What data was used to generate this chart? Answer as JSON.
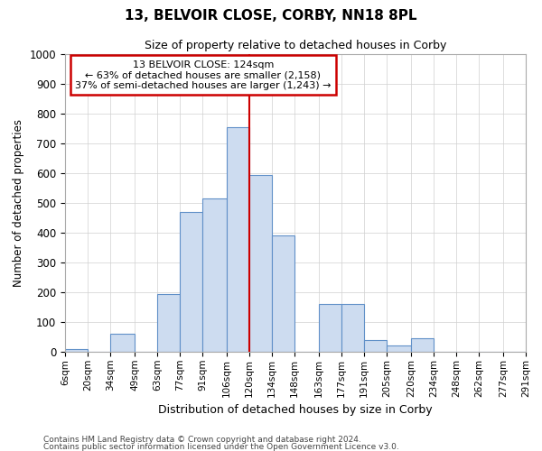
{
  "title": "13, BELVOIR CLOSE, CORBY, NN18 8PL",
  "subtitle": "Size of property relative to detached houses in Corby",
  "xlabel": "Distribution of detached houses by size in Corby",
  "ylabel": "Number of detached properties",
  "annotation_title": "13 BELVOIR CLOSE: 124sqm",
  "annotation_line1": "← 63% of detached houses are smaller (2,158)",
  "annotation_line2": "37% of semi-detached houses are larger (1,243) →",
  "footer_line1": "Contains HM Land Registry data © Crown copyright and database right 2024.",
  "footer_line2": "Contains public sector information licensed under the Open Government Licence v3.0.",
  "bar_color": "#cddcf0",
  "bar_edge_color": "#6090c8",
  "line_color": "#cc0000",
  "annotation_box_edge": "#cc0000",
  "grid_color": "#d0d0d0",
  "background_color": "#ffffff",
  "bin_labels": [
    "6sqm",
    "20sqm",
    "34sqm",
    "49sqm",
    "63sqm",
    "77sqm",
    "91sqm",
    "106sqm",
    "120sqm",
    "134sqm",
    "148sqm",
    "163sqm",
    "177sqm",
    "191sqm",
    "205sqm",
    "220sqm",
    "234sqm",
    "248sqm",
    "262sqm",
    "277sqm",
    "291sqm"
  ],
  "bin_edges": [
    6,
    20,
    34,
    49,
    63,
    77,
    91,
    106,
    120,
    134,
    148,
    163,
    177,
    191,
    205,
    220,
    234,
    248,
    262,
    277,
    291
  ],
  "bar_heights": [
    10,
    0,
    60,
    0,
    195,
    470,
    515,
    755,
    595,
    390,
    0,
    160,
    160,
    40,
    20,
    45,
    0,
    0,
    0,
    0,
    0
  ],
  "property_line_x": 120,
  "ylim": [
    0,
    1000
  ],
  "yticks": [
    0,
    100,
    200,
    300,
    400,
    500,
    600,
    700,
    800,
    900,
    1000
  ]
}
